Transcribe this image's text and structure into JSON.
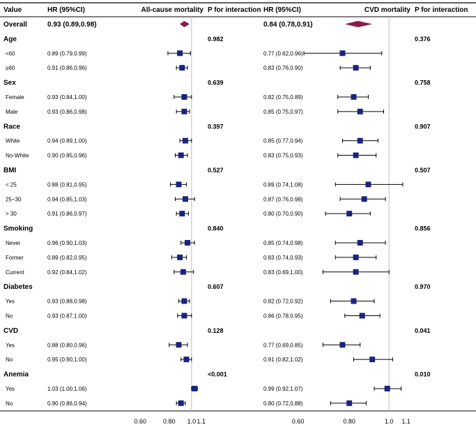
{
  "chart_data": {
    "type": "forest",
    "headers": {
      "value": "Value",
      "hr_left": "HR (95%CI)",
      "panel_left": "All-cause mortality",
      "p_left": "P for interaction",
      "hr_right": "HR (95%CI)",
      "panel_right": "CVD mortality",
      "p_right": "P for interaction"
    },
    "axis": {
      "scale": "log",
      "range": [
        0.5,
        1.15
      ],
      "ticks": [
        0.6,
        0.8,
        1.0,
        1.1
      ],
      "tick_labels": [
        "0.60",
        "0.80",
        "1.0",
        "1.1"
      ],
      "reference_line": 1.0
    },
    "overall": {
      "label": "Overall",
      "all_cause": {
        "hr": 0.93,
        "lo": 0.89,
        "hi": 0.98,
        "text": "0.93 (0.89,0.98)"
      },
      "cvd": {
        "hr": 0.84,
        "lo": 0.78,
        "hi": 0.91,
        "text": "0.84 (0.78,0.91)"
      }
    },
    "groups": [
      {
        "name": "Age",
        "p_all": "0.982",
        "p_cvd": "0.376",
        "rows": [
          {
            "label": "<60",
            "all_cause": {
              "hr": 0.89,
              "lo": 0.79,
              "hi": 0.99,
              "text": "0.89 (0.79,0.99)"
            },
            "cvd": {
              "hr": 0.77,
              "lo": 0.62,
              "hi": 0.96,
              "text": "0.77 (0.62,0.96)"
            }
          },
          {
            "label": "≥60",
            "all_cause": {
              "hr": 0.91,
              "lo": 0.86,
              "hi": 0.96,
              "text": "0.91 (0.86,0.96)"
            },
            "cvd": {
              "hr": 0.83,
              "lo": 0.76,
              "hi": 0.9,
              "text": "0.83 (0.76,0.90)"
            }
          }
        ]
      },
      {
        "name": "Sex",
        "p_all": "0.639",
        "p_cvd": "0.758",
        "rows": [
          {
            "label": "Female",
            "all_cause": {
              "hr": 0.93,
              "lo": 0.84,
              "hi": 1.0,
              "text": "0.93 (0.84,1.00)"
            },
            "cvd": {
              "hr": 0.82,
              "lo": 0.75,
              "hi": 0.89,
              "text": "0.82 (0.75,0.89)"
            }
          },
          {
            "label": "Male",
            "all_cause": {
              "hr": 0.93,
              "lo": 0.86,
              "hi": 0.98,
              "text": "0.93 (0.86,0.98)"
            },
            "cvd": {
              "hr": 0.85,
              "lo": 0.75,
              "hi": 0.97,
              "text": "0.85 (0.75,0.97)"
            }
          }
        ]
      },
      {
        "name": "Race",
        "p_all": "0.397",
        "p_cvd": "0.907",
        "rows": [
          {
            "label": "White",
            "all_cause": {
              "hr": 0.94,
              "lo": 0.89,
              "hi": 1.0,
              "text": "0.94 (0.89,1.00)"
            },
            "cvd": {
              "hr": 0.85,
              "lo": 0.77,
              "hi": 0.94,
              "text": "0.85 (0.77,0.94)"
            }
          },
          {
            "label": "No-White",
            "all_cause": {
              "hr": 0.9,
              "lo": 0.85,
              "hi": 0.96,
              "text": "0.90 (0.85,0.96)"
            },
            "cvd": {
              "hr": 0.83,
              "lo": 0.75,
              "hi": 0.93,
              "text": "0.83 (0.75,0.93)"
            }
          }
        ]
      },
      {
        "name": "BMI",
        "p_all": "0.527",
        "p_cvd": "0.507",
        "rows": [
          {
            "label": "< 25",
            "all_cause": {
              "hr": 0.88,
              "lo": 0.81,
              "hi": 0.95,
              "text": "0.88 (0.81,0.95)"
            },
            "cvd": {
              "hr": 0.89,
              "lo": 0.74,
              "hi": 1.08,
              "text": "0.89 (0.74,1.08)"
            }
          },
          {
            "label": "25~30",
            "all_cause": {
              "hr": 0.94,
              "lo": 0.85,
              "hi": 1.03,
              "text": "0.94 (0.85,1.03)"
            },
            "cvd": {
              "hr": 0.87,
              "lo": 0.76,
              "hi": 0.98,
              "text": "0.87 (0.76,0.98)"
            }
          },
          {
            "label": "> 30",
            "all_cause": {
              "hr": 0.91,
              "lo": 0.86,
              "hi": 0.97,
              "text": "0.91 (0.86,0.97)"
            },
            "cvd": {
              "hr": 0.8,
              "lo": 0.7,
              "hi": 0.9,
              "text": "0.80 (0.70,0.90)"
            }
          }
        ]
      },
      {
        "name": "Smoking",
        "p_all": "0.840",
        "p_cvd": "0.856",
        "rows": [
          {
            "label": "Never",
            "all_cause": {
              "hr": 0.96,
              "lo": 0.9,
              "hi": 1.03,
              "text": "0.96 (0.90,1.03)"
            },
            "cvd": {
              "hr": 0.85,
              "lo": 0.74,
              "hi": 0.98,
              "text": "0.85 (0.74,0.98)"
            }
          },
          {
            "label": "Former",
            "all_cause": {
              "hr": 0.89,
              "lo": 0.82,
              "hi": 0.95,
              "text": "0.89 (0.82,0.95)"
            },
            "cvd": {
              "hr": 0.83,
              "lo": 0.74,
              "hi": 0.93,
              "text": "0.83 (0.74,0.93)"
            }
          },
          {
            "label": "Current",
            "all_cause": {
              "hr": 0.92,
              "lo": 0.84,
              "hi": 1.02,
              "text": "0.92 (0.84,1.02)"
            },
            "cvd": {
              "hr": 0.83,
              "lo": 0.69,
              "hi": 1.0,
              "text": "0.83 (0.69,1.00)"
            }
          }
        ]
      },
      {
        "name": "Diabetes",
        "p_all": "0.607",
        "p_cvd": "0.970",
        "rows": [
          {
            "label": "Yes",
            "all_cause": {
              "hr": 0.93,
              "lo": 0.88,
              "hi": 0.98,
              "text": "0.93 (0.88,0.98)"
            },
            "cvd": {
              "hr": 0.82,
              "lo": 0.72,
              "hi": 0.92,
              "text": "0.82 (0.72,0.92)"
            }
          },
          {
            "label": "No",
            "all_cause": {
              "hr": 0.93,
              "lo": 0.87,
              "hi": 1.0,
              "text": "0.93 (0.87,1.00)"
            },
            "cvd": {
              "hr": 0.86,
              "lo": 0.78,
              "hi": 0.95,
              "text": "0.86 (0.78,0.95)"
            }
          }
        ]
      },
      {
        "name": "CVD",
        "p_all": "0.128",
        "p_cvd": "0.041",
        "rows": [
          {
            "label": "Yes",
            "all_cause": {
              "hr": 0.88,
              "lo": 0.8,
              "hi": 0.96,
              "text": "0.88 (0.80,0.96)"
            },
            "cvd": {
              "hr": 0.77,
              "lo": 0.69,
              "hi": 0.85,
              "text": "0.77 (0.69,0.85)"
            }
          },
          {
            "label": "No",
            "all_cause": {
              "hr": 0.95,
              "lo": 0.9,
              "hi": 1.0,
              "text": "0.95 (0.90,1.00)"
            },
            "cvd": {
              "hr": 0.91,
              "lo": 0.82,
              "hi": 1.02,
              "text": "0.91 (0.82,1.02)"
            }
          }
        ]
      },
      {
        "name": "Anemia",
        "p_all": "<0.001",
        "p_cvd": "0.010",
        "rows": [
          {
            "label": "Yes",
            "all_cause": {
              "hr": 1.03,
              "lo": 1.0,
              "hi": 1.06,
              "text": "1.03 (1.00,1.06)"
            },
            "cvd": {
              "hr": 0.99,
              "lo": 0.92,
              "hi": 1.07,
              "text": "0.99 (0.92,1.07)"
            }
          },
          {
            "label": "No",
            "all_cause": {
              "hr": 0.9,
              "lo": 0.86,
              "hi": 0.94,
              "text": "0.90 (0.86,0.94)"
            },
            "cvd": {
              "hr": 0.8,
              "lo": 0.72,
              "hi": 0.88,
              "text": "0.80 (0.72,0.88)"
            }
          }
        ]
      }
    ],
    "colors": {
      "marker": "#1a237e",
      "diamond": "#8b1a4a",
      "reference": "#bdbdbd",
      "rule": "#000000",
      "whisker": "#000000"
    }
  }
}
